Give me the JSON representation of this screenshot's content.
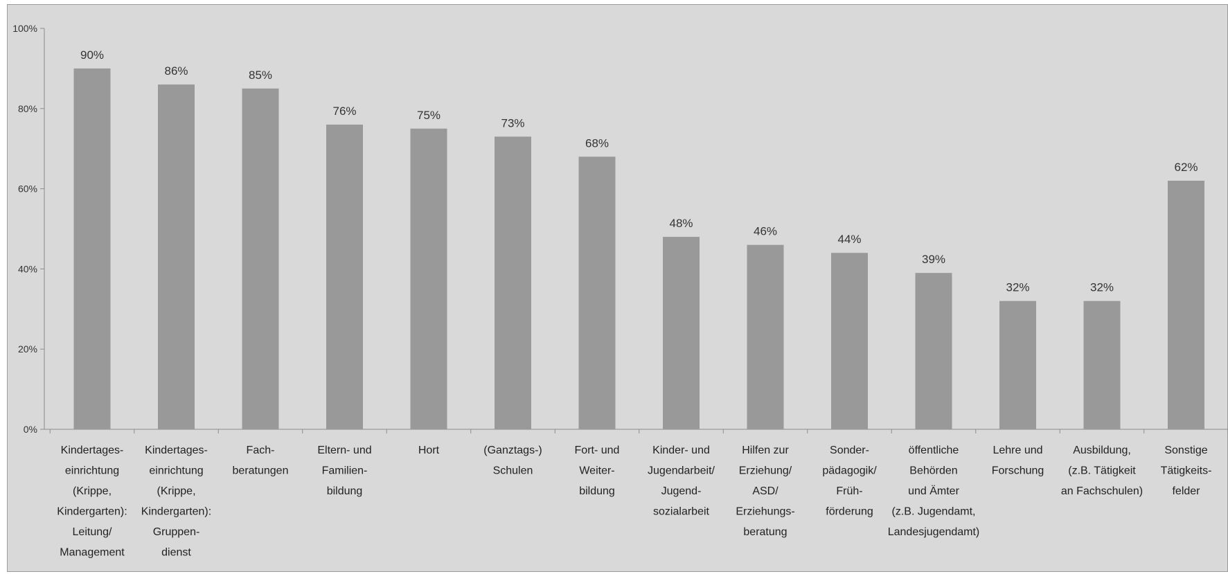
{
  "chart_data": {
    "type": "bar",
    "title": "",
    "xlabel": "",
    "ylabel": "",
    "ylim": [
      0,
      100
    ],
    "ytick_labels": [
      "0%",
      "20%",
      "40%",
      "60%",
      "80%",
      "100%"
    ],
    "yticks": [
      0,
      20,
      40,
      60,
      80,
      100
    ],
    "grid": false,
    "legend": "none",
    "bar_color": "#999999",
    "categories": [
      [
        "Kindertages-",
        "einrichtung",
        "(Krippe,",
        "Kindergarten):",
        "Leitung/",
        "Management"
      ],
      [
        "Kindertages-",
        "einrichtung",
        "(Krippe,",
        "Kindergarten):",
        "Gruppen-",
        "dienst"
      ],
      [
        "Fach-",
        "beratungen"
      ],
      [
        "Eltern- und",
        "Familien-",
        "bildung"
      ],
      [
        "Hort"
      ],
      [
        "(Ganztags-)",
        "Schulen"
      ],
      [
        "Fort- und",
        "Weiter-",
        "bildung"
      ],
      [
        "Kinder- und",
        "Jugendarbeit/",
        "Jugend-",
        "sozialarbeit"
      ],
      [
        "Hilfen zur",
        "Erziehung/",
        "ASD/",
        "Erziehungs-",
        "beratung"
      ],
      [
        "Sonder-",
        "pädagogik/",
        "Früh-",
        "förderung"
      ],
      [
        "öffentliche",
        "Behörden",
        "und Ämter",
        "(z.B. Jugendamt,",
        "Landesjugendamt)"
      ],
      [
        "Lehre und",
        "Forschung"
      ],
      [
        "Ausbildung,",
        "(z.B. Tätigkeit",
        "an Fachschulen)"
      ],
      [
        "Sonstige",
        "Tätigkeits-",
        "felder"
      ]
    ],
    "values": [
      90,
      86,
      85,
      76,
      75,
      73,
      68,
      48,
      46,
      44,
      39,
      32,
      32,
      62
    ],
    "data_labels": [
      "90%",
      "86%",
      "85%",
      "76%",
      "75%",
      "73%",
      "68%",
      "48%",
      "46%",
      "44%",
      "39%",
      "32%",
      "32%",
      "62%"
    ]
  }
}
